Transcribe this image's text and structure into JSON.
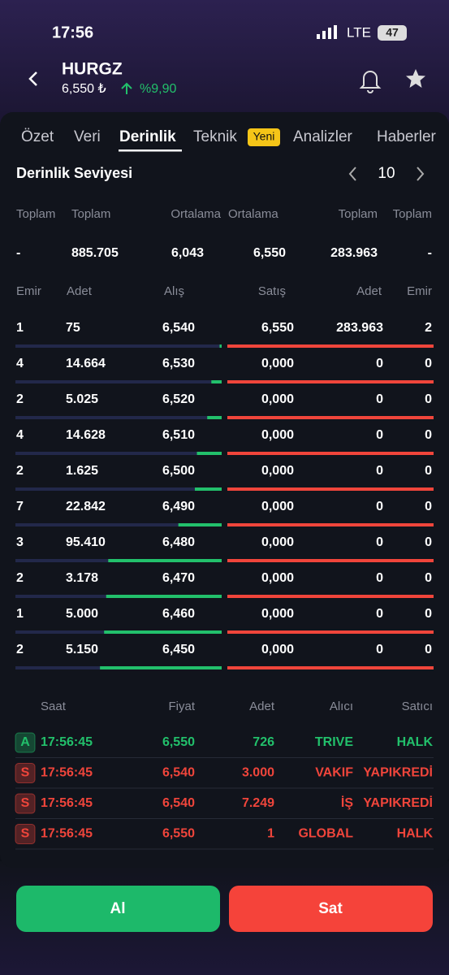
{
  "status_bar": {
    "time": "17:56",
    "network": "LTE",
    "battery": "47"
  },
  "header": {
    "symbol": "HURGZ",
    "price": "6,550 ₺",
    "change": "%9,90"
  },
  "tabs": {
    "items": [
      "Özet",
      "Veri",
      "Derinlik",
      "Teknik",
      "Analizler",
      "Haberler"
    ],
    "badge": "Yeni",
    "active": 2
  },
  "depth": {
    "title": "Derinlik Seviyesi",
    "level": "10",
    "summary_headers": [
      "Toplam",
      "Toplam",
      "Ortalama",
      "Ortalama",
      "Toplam",
      "Toplam"
    ],
    "summary_values": [
      "-",
      "885.705",
      "6,043",
      "6,550",
      "283.963",
      "-"
    ],
    "columns": [
      "Emir",
      "Adet",
      "Alış",
      "Satış",
      "Adet",
      "Emir"
    ],
    "rows": [
      [
        "1",
        "75",
        "6,540",
        "6,550",
        "283.963",
        "2"
      ],
      [
        "4",
        "14.664",
        "6,530",
        "0,000",
        "0",
        "0"
      ],
      [
        "2",
        "5.025",
        "6,520",
        "0,000",
        "0",
        "0"
      ],
      [
        "4",
        "14.628",
        "6,510",
        "0,000",
        "0",
        "0"
      ],
      [
        "2",
        "1.625",
        "6,500",
        "0,000",
        "0",
        "0"
      ],
      [
        "7",
        "22.842",
        "6,490",
        "0,000",
        "0",
        "0"
      ],
      [
        "3",
        "95.410",
        "6,480",
        "0,000",
        "0",
        "0"
      ],
      [
        "2",
        "3.178",
        "6,470",
        "0,000",
        "0",
        "0"
      ],
      [
        "1",
        "5.000",
        "6,460",
        "0,000",
        "0",
        "0"
      ],
      [
        "2",
        "5.150",
        "6,450",
        "0,000",
        "0",
        "0"
      ]
    ],
    "buy_depth": [
      0.01,
      0.05,
      0.07,
      0.12,
      0.13,
      0.21,
      0.55,
      0.56,
      0.57,
      0.59
    ],
    "sell_depth": [
      1,
      1,
      1,
      1,
      1,
      1,
      1,
      1,
      1,
      1
    ]
  },
  "trades": {
    "columns": [
      "Saat",
      "Fiyat",
      "Adet",
      "Alıcı",
      "Satıcı"
    ],
    "rows": [
      {
        "side": "A",
        "time": "17:56:45",
        "price": "6,550",
        "qty": "726",
        "buyer": "TRIVE",
        "seller": "HALK",
        "color": "#22c06b"
      },
      {
        "side": "S",
        "time": "17:56:45",
        "price": "6,540",
        "qty": "3.000",
        "buyer": "VAKIF",
        "seller": "YAPIKREDİ",
        "color": "#f0453b"
      },
      {
        "side": "S",
        "time": "17:56:45",
        "price": "6,540",
        "qty": "7.249",
        "buyer": "İŞ",
        "seller": "YAPIKREDİ",
        "color": "#f0453b"
      },
      {
        "side": "S",
        "time": "17:56:45",
        "price": "6,550",
        "qty": "1",
        "buyer": "GLOBAL",
        "seller": "HALK",
        "color": "#f0453b"
      }
    ]
  },
  "actions": {
    "buy": "Al",
    "sell": "Sat"
  }
}
